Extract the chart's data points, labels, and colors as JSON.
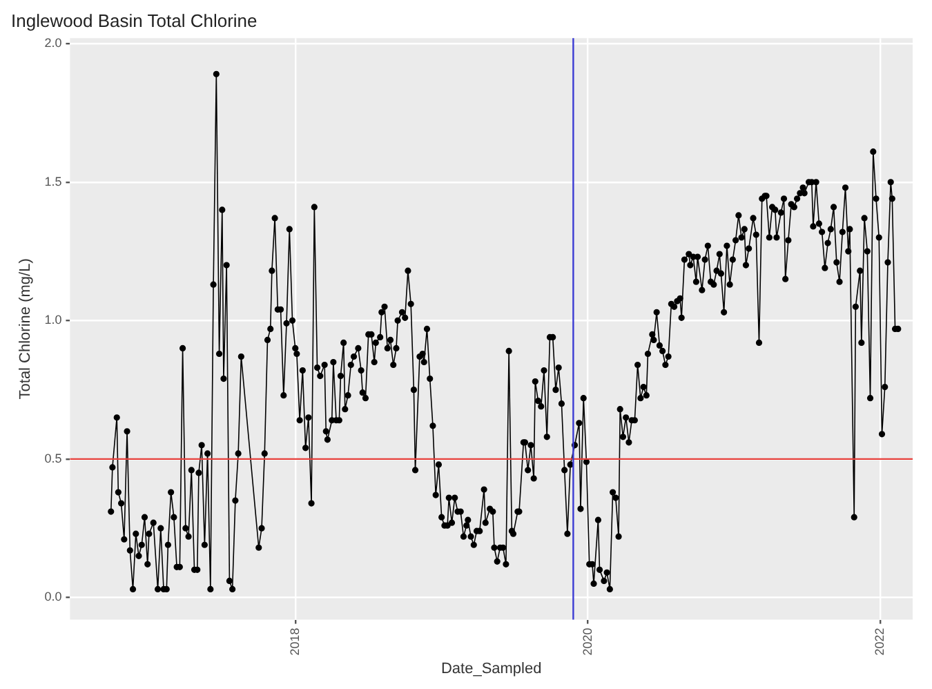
{
  "chart_data": {
    "type": "line",
    "title": "Inglewood Basin Total Chlorine",
    "xlabel": "Date_Sampled",
    "ylabel": "Total Chlorine (mg/L)",
    "xlim": [
      2016.46,
      2022.22
    ],
    "xticks": [
      2018,
      2020,
      2022
    ],
    "ylim": [
      -0.08,
      2.02
    ],
    "yticks": [
      {
        "value": 0,
        "label": "0.0"
      },
      0.5,
      {
        "value": 1,
        "label": "1.0"
      },
      1.5,
      {
        "value": 2,
        "label": "2.0"
      }
    ],
    "grid": true,
    "legend": false,
    "marker": "circle",
    "line_style": "solid",
    "ref_lines": [
      {
        "axis": "y",
        "value": 0.5,
        "color": "#e8413c"
      },
      {
        "axis": "x",
        "value": 2019.9,
        "color": "#3b3bd4"
      }
    ],
    "series": [
      {
        "color": "#000000",
        "x": [
          2016.74,
          2016.75,
          2016.78,
          2016.79,
          2016.81,
          2016.83,
          2016.85,
          2016.87,
          2016.89,
          2016.91,
          2016.93,
          2016.95,
          2016.97,
          2016.99,
          2017.0,
          2017.03,
          2017.06,
          2017.08,
          2017.1,
          2017.12,
          2017.13,
          2017.15,
          2017.17,
          2017.19,
          2017.21,
          2017.23,
          2017.25,
          2017.27,
          2017.29,
          2017.31,
          2017.33,
          2017.34,
          2017.36,
          2017.38,
          2017.4,
          2017.42,
          2017.44,
          2017.46,
          2017.48,
          2017.5,
          2017.51,
          2017.53,
          2017.55,
          2017.57,
          2017.59,
          2017.61,
          2017.63,
          2017.75,
          2017.77,
          2017.79,
          2017.81,
          2017.83,
          2017.84,
          2017.86,
          2017.88,
          2017.9,
          2017.92,
          2017.94,
          2017.96,
          2017.98,
          2018.0,
          2018.01,
          2018.03,
          2018.05,
          2018.07,
          2018.09,
          2018.11,
          2018.13,
          2018.15,
          2018.17,
          2018.2,
          2018.21,
          2018.22,
          2018.25,
          2018.26,
          2018.28,
          2018.3,
          2018.31,
          2018.33,
          2018.34,
          2018.36,
          2018.38,
          2018.4,
          2018.43,
          2018.45,
          2018.46,
          2018.48,
          2018.5,
          2018.52,
          2018.54,
          2018.55,
          2018.58,
          2018.59,
          2018.61,
          2018.63,
          2018.65,
          2018.67,
          2018.69,
          2018.7,
          2018.73,
          2018.75,
          2018.77,
          2018.79,
          2018.81,
          2018.82,
          2018.85,
          2018.87,
          2018.88,
          2018.9,
          2018.92,
          2018.94,
          2018.96,
          2018.98,
          2019.0,
          2019.02,
          2019.04,
          2019.05,
          2019.07,
          2019.09,
          2019.11,
          2019.13,
          2019.15,
          2019.17,
          2019.18,
          2019.2,
          2019.22,
          2019.24,
          2019.26,
          2019.29,
          2019.3,
          2019.33,
          2019.35,
          2019.36,
          2019.38,
          2019.4,
          2019.42,
          2019.44,
          2019.46,
          2019.48,
          2019.49,
          2019.52,
          2019.53,
          2019.56,
          2019.57,
          2019.59,
          2019.61,
          2019.63,
          2019.64,
          2019.66,
          2019.68,
          2019.7,
          2019.72,
          2019.74,
          2019.76,
          2019.78,
          2019.8,
          2019.82,
          2019.84,
          2019.86,
          2019.88,
          2019.91,
          2019.94,
          2019.95,
          2019.97,
          2019.99,
          2020.01,
          2020.03,
          2020.04,
          2020.07,
          2020.08,
          2020.11,
          2020.13,
          2020.15,
          2020.17,
          2020.19,
          2020.21,
          2020.22,
          2020.24,
          2020.26,
          2020.28,
          2020.3,
          2020.32,
          2020.34,
          2020.36,
          2020.38,
          2020.4,
          2020.41,
          2020.44,
          2020.45,
          2020.47,
          2020.49,
          2020.51,
          2020.53,
          2020.55,
          2020.57,
          2020.59,
          2020.61,
          2020.63,
          2020.64,
          2020.66,
          2020.69,
          2020.7,
          2020.72,
          2020.74,
          2020.75,
          2020.78,
          2020.8,
          2020.82,
          2020.84,
          2020.86,
          2020.88,
          2020.9,
          2020.91,
          2020.93,
          2020.95,
          2020.97,
          2020.99,
          2021.01,
          2021.03,
          2021.05,
          2021.07,
          2021.08,
          2021.1,
          2021.13,
          2021.15,
          2021.17,
          2021.19,
          2021.21,
          2021.22,
          2021.24,
          2021.26,
          2021.28,
          2021.29,
          2021.32,
          2021.34,
          2021.35,
          2021.37,
          2021.39,
          2021.41,
          2021.43,
          2021.45,
          2021.47,
          2021.48,
          2021.51,
          2021.53,
          2021.54,
          2021.56,
          2021.58,
          2021.6,
          2021.62,
          2021.64,
          2021.66,
          2021.68,
          2021.7,
          2021.72,
          2021.74,
          2021.76,
          2021.78,
          2021.79,
          2021.82,
          2021.83,
          2021.86,
          2021.87,
          2021.89,
          2021.91,
          2021.93,
          2021.95,
          2021.97,
          2021.99,
          2022.01,
          2022.03,
          2022.05,
          2022.07,
          2022.08,
          2022.1,
          2022.12
        ],
        "values": [
          0.31,
          0.47,
          0.65,
          0.38,
          0.34,
          0.21,
          0.6,
          0.17,
          0.03,
          0.23,
          0.15,
          0.19,
          0.29,
          0.12,
          0.23,
          0.27,
          0.03,
          0.25,
          0.03,
          0.03,
          0.19,
          0.38,
          0.29,
          0.11,
          0.11,
          0.9,
          0.25,
          0.22,
          0.46,
          0.1,
          0.1,
          0.45,
          0.55,
          0.19,
          0.52,
          0.03,
          1.13,
          1.89,
          0.88,
          1.4,
          0.79,
          1.2,
          0.06,
          0.03,
          0.35,
          0.52,
          0.87,
          0.18,
          0.25,
          0.52,
          0.93,
          0.97,
          1.18,
          1.37,
          1.04,
          1.04,
          0.73,
          0.99,
          1.33,
          1.0,
          0.9,
          0.88,
          0.64,
          0.82,
          0.54,
          0.65,
          0.34,
          1.41,
          0.83,
          0.8,
          0.84,
          0.6,
          0.57,
          0.64,
          0.85,
          0.64,
          0.64,
          0.8,
          0.92,
          0.68,
          0.73,
          0.84,
          0.87,
          0.9,
          0.82,
          0.74,
          0.72,
          0.95,
          0.95,
          0.85,
          0.92,
          0.94,
          1.03,
          1.05,
          0.9,
          0.93,
          0.84,
          0.9,
          1.0,
          1.03,
          1.01,
          1.18,
          1.06,
          0.75,
          0.46,
          0.87,
          0.88,
          0.85,
          0.97,
          0.79,
          0.62,
          0.37,
          0.48,
          0.29,
          0.26,
          0.26,
          0.36,
          0.27,
          0.36,
          0.31,
          0.31,
          0.22,
          0.26,
          0.28,
          0.22,
          0.19,
          0.24,
          0.24,
          0.39,
          0.27,
          0.32,
          0.31,
          0.18,
          0.13,
          0.18,
          0.18,
          0.12,
          0.89,
          0.24,
          0.23,
          0.31,
          0.31,
          0.56,
          0.56,
          0.46,
          0.55,
          0.43,
          0.78,
          0.71,
          0.69,
          0.82,
          0.58,
          0.94,
          0.94,
          0.75,
          0.83,
          0.7,
          0.46,
          0.23,
          0.48,
          0.55,
          0.63,
          0.32,
          0.72,
          0.49,
          0.12,
          0.12,
          0.05,
          0.28,
          0.1,
          0.06,
          0.09,
          0.03,
          0.38,
          0.36,
          0.22,
          0.68,
          0.58,
          0.65,
          0.56,
          0.64,
          0.64,
          0.84,
          0.72,
          0.76,
          0.73,
          0.88,
          0.95,
          0.93,
          1.03,
          0.91,
          0.89,
          0.84,
          0.87,
          1.06,
          1.05,
          1.07,
          1.08,
          1.01,
          1.22,
          1.24,
          1.2,
          1.23,
          1.14,
          1.23,
          1.11,
          1.22,
          1.27,
          1.14,
          1.13,
          1.18,
          1.24,
          1.17,
          1.03,
          1.27,
          1.13,
          1.22,
          1.29,
          1.38,
          1.3,
          1.33,
          1.2,
          1.26,
          1.37,
          1.31,
          0.92,
          1.44,
          1.45,
          1.45,
          1.3,
          1.41,
          1.4,
          1.3,
          1.39,
          1.44,
          1.15,
          1.29,
          1.42,
          1.41,
          1.44,
          1.46,
          1.48,
          1.46,
          1.5,
          1.5,
          1.34,
          1.5,
          1.35,
          1.32,
          1.19,
          1.28,
          1.33,
          1.41,
          1.21,
          1.14,
          1.32,
          1.48,
          1.25,
          1.33,
          0.29,
          1.05,
          1.18,
          0.92,
          1.37,
          1.25,
          0.72,
          1.61,
          1.44,
          1.3,
          0.59,
          0.76,
          1.21,
          1.5,
          1.44,
          0.97,
          0.97
        ]
      }
    ]
  }
}
